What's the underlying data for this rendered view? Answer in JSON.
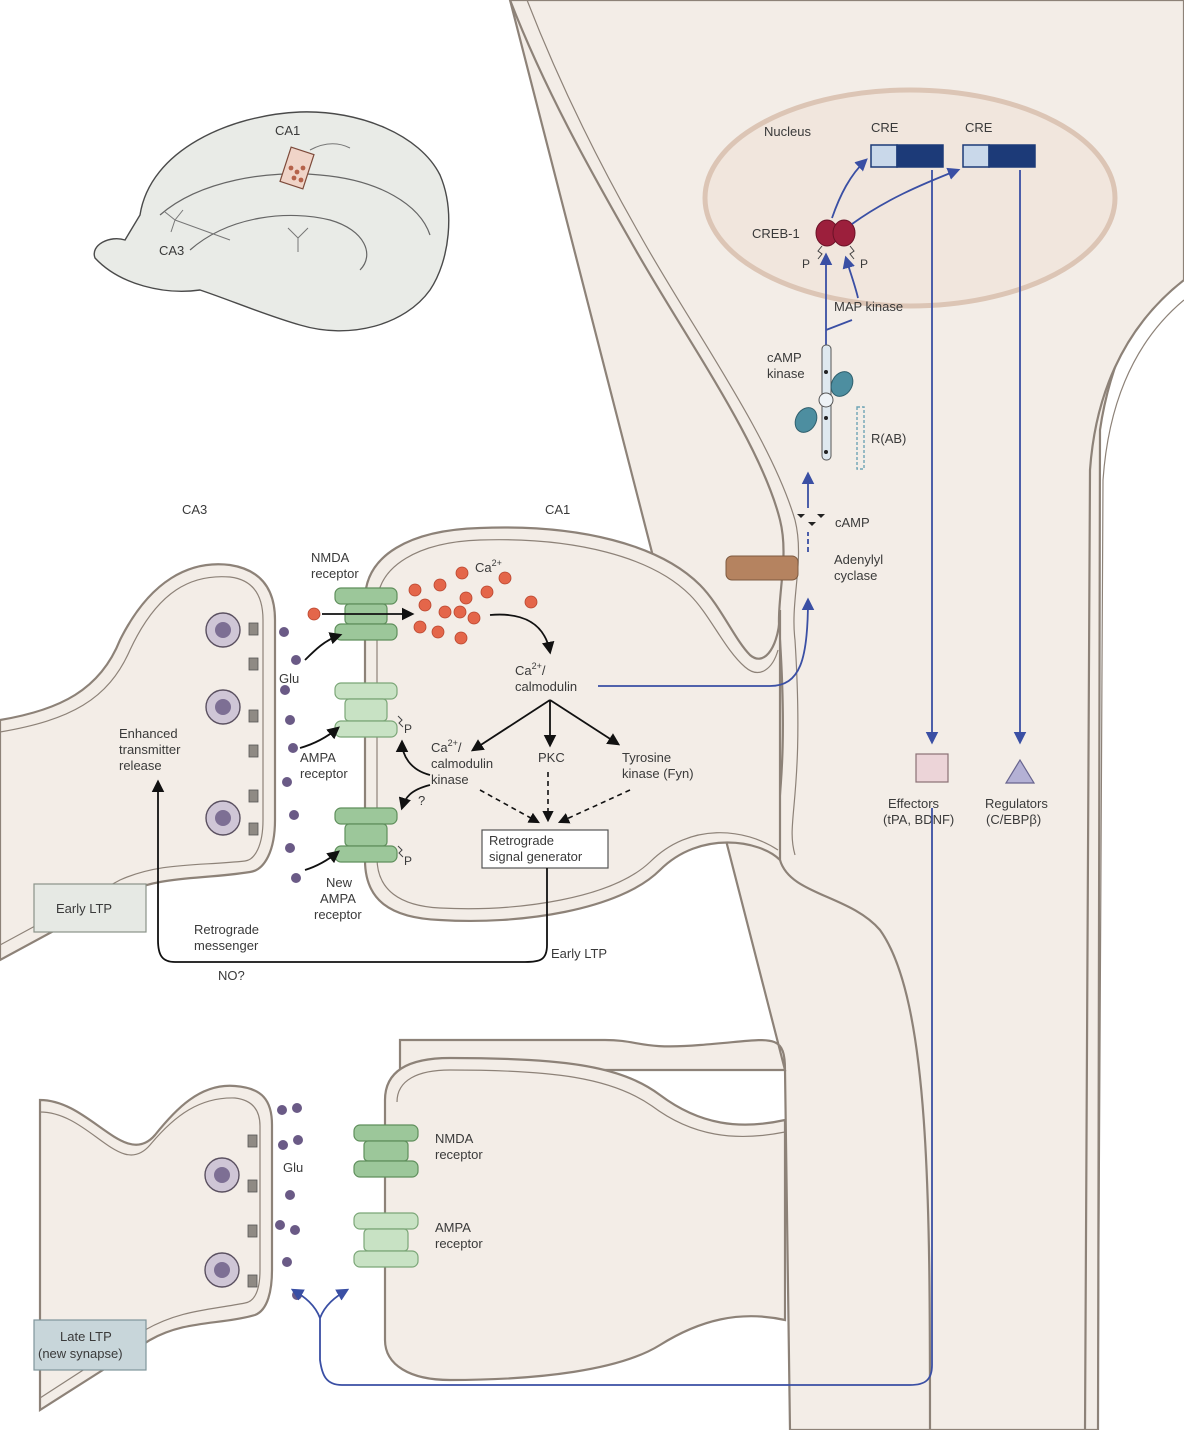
{
  "brain_inset": {
    "ca1_label": "CA1",
    "ca3_label": "CA3"
  },
  "region_labels": {
    "ca3": "CA3",
    "ca1": "CA1"
  },
  "nucleus": {
    "label": "Nucleus",
    "cre_left": "CRE",
    "cre_right": "CRE",
    "creb_label": "CREB-1",
    "phospho_left": "P",
    "phospho_right": "P"
  },
  "pathway": {
    "map_kinase": "MAP kinase",
    "camp_kinase_line1": "cAMP",
    "camp_kinase_line2": "kinase",
    "rab": "R(AB)",
    "camp": "cAMP",
    "adenylyl_line1": "Adenylyl",
    "adenylyl_line2": "cyclase"
  },
  "early_synapse": {
    "nmda_line1": "NMDA",
    "nmda_line2": "receptor",
    "ca_label": "Ca",
    "ca_sup": "2+",
    "glu": "Glu",
    "calmod_line1_main": "Ca",
    "calmod_line1_sup": "2+",
    "calmod_line1_tail": "/",
    "calmod_line2": "calmodulin",
    "enhanced_line1": "Enhanced",
    "enhanced_line2": "transmitter",
    "enhanced_line3": "release",
    "ampa_line1": "AMPA",
    "ampa_line2": "receptor",
    "camk_line1_main": "Ca",
    "camk_line1_sup": "2+",
    "camk_line1_tail": "/",
    "camk_line2": "calmodulin",
    "camk_line3": "kinase",
    "pkc": "PKC",
    "tyrosine_line1": "Tyrosine",
    "tyrosine_line2": "kinase (Fyn)",
    "question": "?",
    "p_top": "P",
    "p_bottom": "P",
    "new_ampa_line1": "New",
    "new_ampa_line2": "AMPA",
    "new_ampa_line3": "receptor",
    "retro_gen_line1": "Retrograde",
    "retro_gen_line2": "signal generator",
    "early_ltp_box": "Early LTP",
    "retro_msg_line1": "Retrograde",
    "retro_msg_line2": "messenger",
    "no": "NO?",
    "early_ltp_path": "Early LTP"
  },
  "products": {
    "effectors_line1": "Effectors",
    "effectors_line2": "(tPA, BDNF)",
    "regulators_line1": "Regulators",
    "regulators_line2": "(C/EBPβ)"
  },
  "late_synapse": {
    "glu": "Glu",
    "nmda_line1": "NMDA",
    "nmda_line2": "receptor",
    "ampa_line1": "AMPA",
    "ampa_line2": "receptor",
    "late_ltp_line1": "Late LTP",
    "late_ltp_line2": "(new synapse)"
  },
  "colors": {
    "cytoplasm": "#f3ede7",
    "membrane": "#8d8278",
    "pathway_arrow": "#3a4fa4",
    "calcium": "#e4664a",
    "glutamate": "#6a5a86",
    "receptor": "#9cc79a",
    "creb": "#9c1f3c",
    "cre_dark": "#1c3a78",
    "cre_light": "#c9d8ea",
    "adenylyl": "#b58360",
    "kinase_teal": "#4d8ea0"
  }
}
